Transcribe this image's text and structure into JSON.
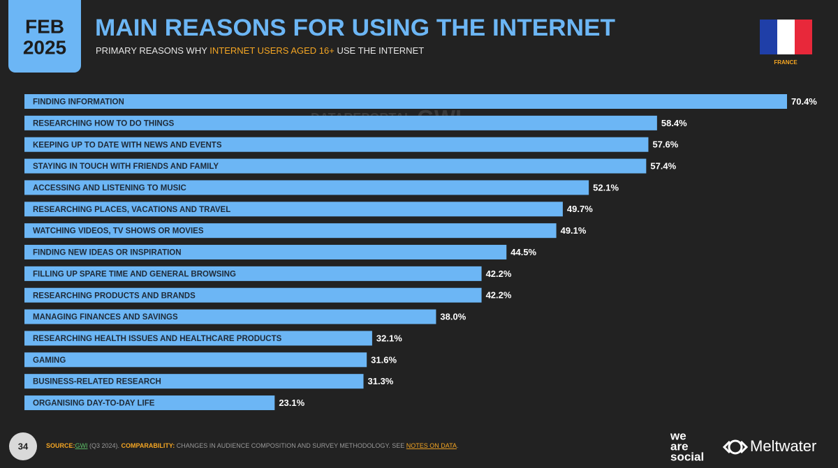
{
  "header": {
    "date_month": "FEB",
    "date_year": "2025",
    "title": "MAIN REASONS FOR USING THE INTERNET",
    "subtitle": [
      "PRIMARY REASONS WHY ",
      "INTERNET USERS AGED 16+",
      " USE THE INTERNET"
    ],
    "country": "FRANCE"
  },
  "watermark": [
    "DATAREPORTAL",
    "GWI."
  ],
  "chart_data": {
    "type": "bar",
    "orientation": "horizontal",
    "color": "#6cb6f5",
    "categories": [
      "FINDING INFORMATION",
      "RESEARCHING HOW TO DO THINGS",
      "KEEPING UP TO DATE WITH NEWS AND EVENTS",
      "STAYING IN TOUCH WITH FRIENDS AND FAMILY",
      "ACCESSING AND LISTENING TO MUSIC",
      "RESEARCHING PLACES, VACATIONS AND TRAVEL",
      "WATCHING VIDEOS, TV SHOWS OR MOVIES",
      "FINDING NEW IDEAS OR INSPIRATION",
      "FILLING UP SPARE TIME AND GENERAL BROWSING",
      "RESEARCHING PRODUCTS AND BRANDS",
      "MANAGING FINANCES AND SAVINGS",
      "RESEARCHING HEALTH ISSUES AND HEALTHCARE PRODUCTS",
      "GAMING",
      "BUSINESS-RELATED RESEARCH",
      "ORGANISING DAY-TO-DAY LIFE"
    ],
    "values": [
      70.4,
      58.4,
      57.6,
      57.4,
      52.1,
      49.7,
      49.1,
      44.5,
      42.2,
      42.2,
      38.0,
      32.1,
      31.6,
      31.3,
      23.1
    ],
    "value_labels": [
      "70.4%",
      "58.4%",
      "57.6%",
      "57.4%",
      "52.1%",
      "49.7%",
      "49.1%",
      "44.5%",
      "42.2%",
      "42.2%",
      "38.0%",
      "32.1%",
      "31.6%",
      "31.3%",
      "23.1%"
    ]
  },
  "footer": {
    "page": "34",
    "source_label": "SOURCE:",
    "source": "GWI",
    "source_period": " (Q3 2024).",
    "comparability_label": " COMPARABILITY:",
    "comparability": " CHANGES IN AUDIENCE COMPOSITION AND SURVEY METHODOLOGY. SEE ",
    "notes_link": "NOTES ON DATA",
    "end": "."
  },
  "logos": {
    "we_are_social": [
      "we",
      "are",
      "social"
    ],
    "meltwater": "Meltwater"
  }
}
